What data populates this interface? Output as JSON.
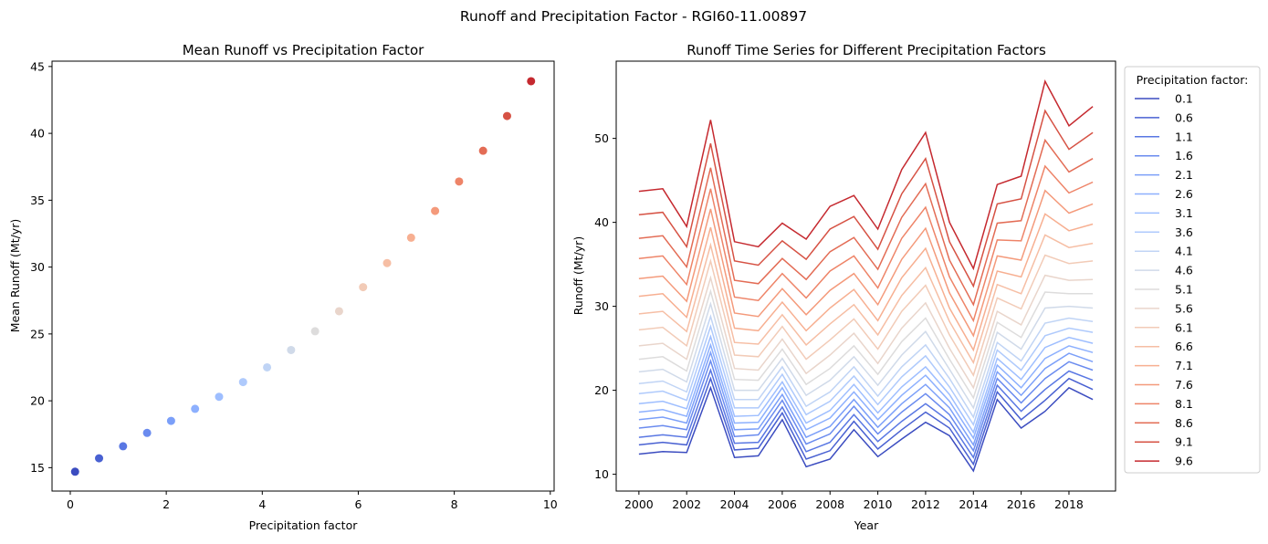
{
  "suptitle": "Runoff and Precipitation Factor - RGI60-11.00897",
  "chart_data": [
    {
      "type": "scatter",
      "title": "Mean Runoff vs Precipitation Factor",
      "xlabel": "Precipitation factor",
      "ylabel": "Mean Runoff (Mt/yr)",
      "xlim": [
        -0.38,
        10.08
      ],
      "ylim": [
        13.25,
        45.4
      ],
      "xticks": [
        0,
        2,
        4,
        6,
        8,
        10
      ],
      "yticks": [
        15,
        20,
        25,
        30,
        35,
        40,
        45
      ],
      "x": [
        0.1,
        0.6,
        1.1,
        1.6,
        2.1,
        2.6,
        3.1,
        3.6,
        4.1,
        4.6,
        5.1,
        5.6,
        6.1,
        6.6,
        7.1,
        7.6,
        8.1,
        8.6,
        9.1,
        9.6
      ],
      "y": [
        14.7,
        15.7,
        16.6,
        17.6,
        18.5,
        19.4,
        20.3,
        21.4,
        22.5,
        23.8,
        25.2,
        26.7,
        28.5,
        30.3,
        32.2,
        34.2,
        36.4,
        38.7,
        41.3,
        43.9
      ],
      "colormap": "coolwarm"
    },
    {
      "type": "line",
      "title": "Runoff Time Series for Different Precipitation Factors",
      "xlabel": "Year",
      "ylabel": "Runoff (Mt/yr)",
      "xlim": [
        1999.05,
        2019.95
      ],
      "ylim": [
        8.0,
        59.2
      ],
      "xticks": [
        2000,
        2002,
        2004,
        2006,
        2008,
        2010,
        2012,
        2014,
        2016,
        2018
      ],
      "yticks": [
        10,
        20,
        30,
        40,
        50
      ],
      "legend_title": "Precipitation factor:",
      "legend_position": "outside right",
      "x": [
        2000,
        2001,
        2002,
        2003,
        2004,
        2005,
        2006,
        2007,
        2008,
        2009,
        2010,
        2011,
        2012,
        2013,
        2014,
        2015,
        2016,
        2017,
        2018,
        2019
      ],
      "series": [
        {
          "name": "0.1",
          "color": "#3b4cc0",
          "values": [
            12.4,
            12.7,
            12.6,
            20.3,
            12.0,
            12.2,
            16.5,
            10.9,
            11.8,
            15.3,
            12.1,
            14.2,
            16.2,
            14.6,
            10.4,
            18.9,
            15.5,
            17.5,
            20.3,
            18.9
          ]
        },
        {
          "name": "0.6",
          "color": "#4961d2",
          "values": [
            13.5,
            13.8,
            13.5,
            21.4,
            12.9,
            13.1,
            17.3,
            11.8,
            12.8,
            16.3,
            13.0,
            15.3,
            17.4,
            15.5,
            11.2,
            19.8,
            16.5,
            18.8,
            21.4,
            20.1
          ]
        },
        {
          "name": "1.1",
          "color": "#5977e3",
          "values": [
            14.4,
            14.7,
            14.4,
            22.4,
            13.7,
            13.8,
            18.0,
            12.7,
            13.8,
            17.1,
            13.9,
            16.3,
            18.4,
            16.3,
            12.0,
            20.6,
            17.5,
            20.1,
            22.3,
            21.2
          ]
        },
        {
          "name": "1.6",
          "color": "#6a8bef",
          "values": [
            15.5,
            15.8,
            15.3,
            23.5,
            14.5,
            14.7,
            18.8,
            13.6,
            14.8,
            18.1,
            14.8,
            17.4,
            19.6,
            17.1,
            12.8,
            21.4,
            18.5,
            21.4,
            23.4,
            22.4
          ]
        },
        {
          "name": "2.1",
          "color": "#7b9ff9",
          "values": [
            16.5,
            16.8,
            16.1,
            24.5,
            15.3,
            15.4,
            19.5,
            14.4,
            15.7,
            18.9,
            15.6,
            18.4,
            20.7,
            17.9,
            13.5,
            22.2,
            19.4,
            22.6,
            24.4,
            23.4
          ]
        },
        {
          "name": "2.6",
          "color": "#8db0fe",
          "values": [
            17.4,
            17.7,
            16.9,
            25.4,
            16.1,
            16.2,
            20.3,
            15.3,
            16.7,
            19.8,
            16.5,
            19.4,
            21.8,
            18.7,
            14.3,
            23.0,
            20.3,
            23.8,
            25.3,
            24.5
          ]
        },
        {
          "name": "3.1",
          "color": "#9ebeff",
          "values": [
            18.4,
            18.7,
            17.8,
            26.4,
            16.9,
            17.0,
            21.0,
            16.1,
            17.6,
            20.7,
            17.3,
            20.4,
            22.8,
            19.5,
            15.0,
            23.8,
            21.3,
            25.1,
            26.3,
            25.6
          ]
        },
        {
          "name": "3.6",
          "color": "#afcafc",
          "values": [
            19.6,
            19.9,
            18.8,
            27.6,
            17.9,
            17.9,
            21.9,
            17.1,
            18.7,
            21.7,
            18.3,
            21.6,
            24.1,
            20.4,
            15.9,
            24.8,
            22.4,
            26.5,
            27.4,
            26.9
          ]
        },
        {
          "name": "4.1",
          "color": "#c0d4f5",
          "values": [
            20.8,
            21.1,
            19.8,
            28.8,
            18.9,
            18.9,
            22.8,
            18.1,
            19.8,
            22.8,
            19.3,
            22.8,
            25.4,
            21.4,
            16.8,
            25.7,
            23.5,
            28.0,
            28.6,
            28.2
          ]
        },
        {
          "name": "4.6",
          "color": "#d0dae9",
          "values": [
            22.2,
            22.5,
            21.0,
            30.3,
            20.0,
            20.0,
            23.8,
            19.4,
            21.2,
            24.0,
            20.6,
            24.2,
            27.0,
            22.5,
            17.9,
            26.9,
            24.9,
            29.8,
            30.0,
            29.8
          ]
        },
        {
          "name": "5.1",
          "color": "#dddcdc",
          "values": [
            23.7,
            24.0,
            22.3,
            31.8,
            21.3,
            21.2,
            24.9,
            20.7,
            22.6,
            25.3,
            21.9,
            25.8,
            28.6,
            23.7,
            19.1,
            28.1,
            26.3,
            31.7,
            31.5,
            31.5
          ]
        },
        {
          "name": "5.6",
          "color": "#e9d5cb",
          "values": [
            25.3,
            25.6,
            23.7,
            33.4,
            22.6,
            22.4,
            26.1,
            22.0,
            24.2,
            26.8,
            23.2,
            27.4,
            30.4,
            25.0,
            20.3,
            29.4,
            27.8,
            33.7,
            33.1,
            33.2
          ]
        },
        {
          "name": "6.1",
          "color": "#f2cbb7",
          "values": [
            27.2,
            27.5,
            25.3,
            35.4,
            24.2,
            24.0,
            27.6,
            23.7,
            26.0,
            28.5,
            24.9,
            29.4,
            32.5,
            26.6,
            21.8,
            31.0,
            29.7,
            36.1,
            35.1,
            35.4
          ]
        },
        {
          "name": "6.6",
          "color": "#f6bea4",
          "values": [
            29.1,
            29.4,
            27.0,
            37.3,
            25.7,
            25.5,
            29.0,
            25.4,
            27.9,
            30.2,
            26.6,
            31.3,
            34.6,
            28.2,
            23.3,
            32.6,
            31.5,
            38.5,
            37.0,
            37.5
          ]
        },
        {
          "name": "7.1",
          "color": "#f7af91",
          "values": [
            31.2,
            31.5,
            28.7,
            39.4,
            27.4,
            27.1,
            30.5,
            27.1,
            29.8,
            32.0,
            28.3,
            33.4,
            36.9,
            29.8,
            24.8,
            34.2,
            33.5,
            41.0,
            39.0,
            39.8
          ]
        },
        {
          "name": "7.6",
          "color": "#f49a7b",
          "values": [
            33.3,
            33.6,
            30.6,
            41.6,
            29.2,
            28.8,
            32.1,
            29.0,
            31.9,
            33.9,
            30.2,
            35.6,
            39.3,
            31.6,
            26.5,
            36.0,
            35.5,
            43.8,
            41.1,
            42.2
          ]
        },
        {
          "name": "8.1",
          "color": "#ee8468",
          "values": [
            35.7,
            36.0,
            32.6,
            44.0,
            31.1,
            30.7,
            33.9,
            31.0,
            34.2,
            36.0,
            32.2,
            38.1,
            41.8,
            33.5,
            28.3,
            37.9,
            37.8,
            46.7,
            43.5,
            44.8
          ]
        },
        {
          "name": "8.6",
          "color": "#e36c55",
          "values": [
            38.1,
            38.4,
            34.7,
            46.5,
            33.1,
            32.7,
            35.7,
            33.2,
            36.5,
            38.2,
            34.4,
            40.6,
            44.6,
            35.5,
            30.2,
            39.9,
            40.2,
            49.8,
            46.0,
            47.6
          ]
        },
        {
          "name": "9.1",
          "color": "#d65244",
          "values": [
            40.9,
            41.2,
            37.1,
            49.4,
            35.4,
            34.9,
            37.8,
            35.6,
            39.2,
            40.7,
            36.8,
            43.4,
            47.6,
            37.7,
            32.4,
            42.2,
            42.8,
            53.3,
            48.7,
            50.7
          ]
        },
        {
          "name": "9.6",
          "color": "#c5292f",
          "values": [
            43.7,
            44.0,
            39.5,
            52.2,
            37.7,
            37.1,
            39.9,
            38.0,
            41.9,
            43.2,
            39.2,
            46.3,
            50.7,
            40.0,
            34.5,
            44.5,
            45.5,
            56.8,
            51.5,
            53.8
          ]
        }
      ]
    }
  ]
}
